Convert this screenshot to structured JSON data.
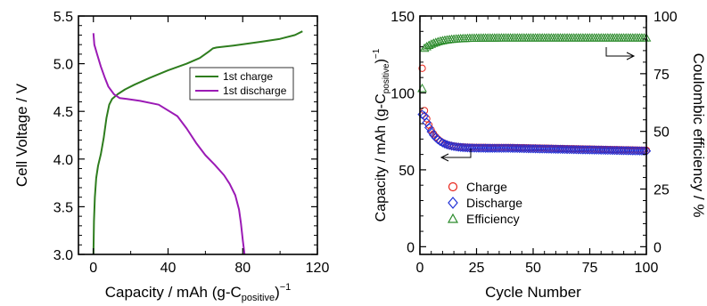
{
  "chart_data": [
    {
      "type": "line",
      "xlabel_main": "Capacity / mAh (g-C",
      "xlabel_sub": "positive",
      "xlabel_tail": ")",
      "xlabel_sup": "−1",
      "ylabel": "Cell Voltage / V",
      "xlim": [
        -8,
        120
      ],
      "ylim": [
        3.0,
        5.5
      ],
      "xticks": [
        0,
        40,
        80,
        120
      ],
      "xtick_labels": [
        "0",
        "40",
        "80",
        "120"
      ],
      "yticks": [
        3.0,
        3.5,
        4.0,
        4.5,
        5.0,
        5.5
      ],
      "ytick_labels": [
        "3.0",
        "3.5",
        "4.0",
        "4.5",
        "5.0",
        "5.5"
      ],
      "legend_position": "center-right",
      "series": [
        {
          "name": "1st charge",
          "color": "#2e7d1e",
          "x": [
            0,
            0.3,
            0.8,
            1.5,
            2.5,
            4,
            5.5,
            7,
            8.5,
            10,
            13,
            17,
            22,
            30,
            40,
            50,
            57,
            62,
            64,
            66,
            75,
            90,
            100,
            108,
            112
          ],
          "y": [
            3.0,
            3.35,
            3.6,
            3.8,
            3.93,
            4.05,
            4.22,
            4.43,
            4.57,
            4.63,
            4.68,
            4.73,
            4.78,
            4.85,
            4.93,
            5.0,
            5.06,
            5.13,
            5.16,
            5.17,
            5.19,
            5.23,
            5.26,
            5.3,
            5.34
          ]
        },
        {
          "name": "1st discharge",
          "color": "#9b1ab5",
          "x": [
            0,
            0.5,
            2,
            4,
            6,
            8,
            11,
            14,
            18,
            25,
            35,
            45,
            50,
            55,
            60,
            65,
            70,
            73,
            76,
            78,
            79,
            80,
            81
          ],
          "y": [
            5.32,
            5.2,
            5.1,
            4.97,
            4.86,
            4.76,
            4.68,
            4.64,
            4.63,
            4.61,
            4.57,
            4.45,
            4.32,
            4.17,
            4.04,
            3.94,
            3.83,
            3.74,
            3.62,
            3.47,
            3.33,
            3.15,
            3.0
          ]
        }
      ]
    },
    {
      "type": "scatter",
      "xlabel": "Cycle Number",
      "ylabel_left_main": "Capacity / mAh (g-C",
      "ylabel_left_sub": "positive",
      "ylabel_left_tail": ")",
      "ylabel_left_sup": "−1",
      "ylabel_right": "Coulombic efficiency / %",
      "xlim": [
        0,
        100
      ],
      "ylim_left": [
        -5,
        150
      ],
      "ylim_right": [
        -3.33,
        100
      ],
      "xticks": [
        0,
        25,
        50,
        75,
        100
      ],
      "xtick_labels": [
        "0",
        "25",
        "50",
        "75",
        "100"
      ],
      "yticks_left": [
        0,
        50,
        100,
        150
      ],
      "ytick_labels_left": [
        "0",
        "50",
        "100",
        "150"
      ],
      "yticks_right": [
        0,
        25,
        50,
        75,
        100
      ],
      "ytick_labels_right": [
        "0",
        "25",
        "50",
        "75",
        "100"
      ],
      "legend_position": "bottom-left",
      "series": [
        {
          "name": "Charge",
          "color": "#e8241a",
          "marker": "circle",
          "axis": "left",
          "model": {
            "first": 116,
            "a": 64.5,
            "b": 24,
            "tau": 4,
            "drift_start": 40,
            "drift": 0.03
          }
        },
        {
          "name": "Discharge",
          "color": "#1f2fd6",
          "marker": "diamond",
          "axis": "left",
          "model": {
            "first": 86,
            "a": 64,
            "b": 21,
            "tau": 4.5,
            "drift_start": 40,
            "drift": 0.03
          }
        },
        {
          "name": "Efficiency",
          "color": "#2a8a2a",
          "marker": "triangle",
          "axis": "right",
          "model": {
            "first": 68.6,
            "a": 90.5,
            "b": -4.5,
            "tau": 6,
            "drift_start": 200,
            "drift": 0
          }
        }
      ]
    }
  ]
}
